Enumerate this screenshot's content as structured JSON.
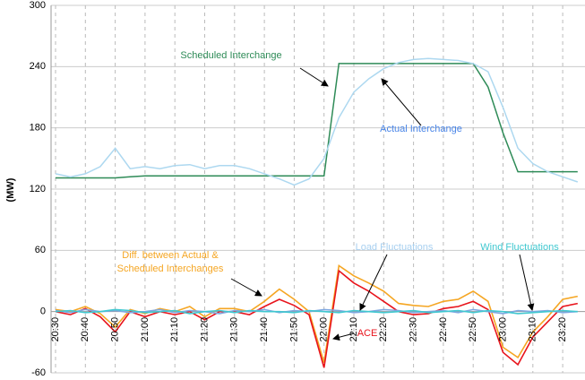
{
  "chart_data": {
    "type": "line",
    "ylabel": "(MW)",
    "categories": [
      "20:30",
      null,
      "20:40",
      null,
      "20:50",
      null,
      "21:00",
      null,
      "21:10",
      null,
      "21:20",
      null,
      "21:30",
      null,
      "21:40",
      null,
      "21:50",
      null,
      "22:00",
      null,
      "22:10",
      null,
      "22:20",
      null,
      "22:30",
      null,
      "22:40",
      null,
      "22:50",
      null,
      "23:00",
      null,
      "23:10",
      null,
      "23:20",
      null
    ],
    "ylim": [
      -60,
      300
    ],
    "yticks": [
      -60,
      0,
      60,
      120,
      180,
      240,
      300
    ],
    "grid": true,
    "series": [
      {
        "color": "#2e8b57",
        "values": [
          131,
          131,
          131,
          131,
          131,
          132,
          133,
          133,
          133,
          133,
          133,
          133,
          133,
          133,
          133,
          133,
          133,
          133,
          133,
          243,
          243,
          243,
          243,
          243,
          243,
          243,
          243,
          243,
          243,
          220,
          175,
          137,
          137,
          137,
          137,
          137
        ]
      },
      {
        "color": "#add8f0",
        "values": [
          135,
          132,
          135,
          142,
          160,
          140,
          142,
          140,
          143,
          144,
          140,
          143,
          143,
          140,
          135,
          130,
          124,
          130,
          150,
          190,
          215,
          228,
          238,
          244,
          247,
          248,
          247,
          246,
          243,
          235,
          200,
          160,
          145,
          137,
          132,
          127
        ]
      },
      {
        "color": "#f5a623",
        "values": [
          2,
          0,
          5,
          -2,
          -15,
          2,
          -2,
          3,
          0,
          5,
          -5,
          3,
          3,
          0,
          10,
          22,
          12,
          0,
          -50,
          45,
          35,
          28,
          20,
          8,
          6,
          5,
          10,
          12,
          20,
          10,
          -35,
          -45,
          -20,
          -5,
          12,
          15
        ]
      },
      {
        "color": "#e8141c",
        "values": [
          0,
          -3,
          3,
          -5,
          -20,
          0,
          -5,
          0,
          -3,
          0,
          -8,
          0,
          0,
          -3,
          5,
          12,
          6,
          -3,
          -55,
          40,
          28,
          20,
          10,
          0,
          -3,
          -2,
          3,
          5,
          10,
          2,
          -40,
          -52,
          -25,
          -10,
          5,
          8
        ]
      },
      {
        "color": "#7fa7e0",
        "values": [
          1,
          -1,
          2,
          0,
          1,
          -1,
          0,
          2,
          -1,
          1,
          0,
          -2,
          1,
          0,
          2,
          -1,
          1,
          0,
          2,
          1,
          -1,
          0,
          2,
          1,
          -1,
          0,
          1,
          -1,
          2,
          0,
          -2,
          1,
          0,
          1,
          -1,
          0
        ]
      },
      {
        "color": "#40c8d0",
        "values": [
          0,
          1,
          -1,
          0,
          2,
          1,
          -1,
          0,
          1,
          -2,
          0,
          1,
          -1,
          1,
          0,
          0,
          -1,
          1,
          0,
          -1,
          1,
          0,
          -1,
          0,
          1,
          -1,
          0,
          1,
          -1,
          1,
          0,
          -2,
          -1,
          0,
          1,
          0
        ]
      }
    ],
    "annotations": [
      {
        "text": "Scheduled Interchange",
        "color": "#2e8b57"
      },
      {
        "text": "Actual Interchange",
        "color": "#4a86e8"
      },
      {
        "text": "Diff. between Actual &",
        "color": "#f5a623"
      },
      {
        "text": "Scheduled Interchanges",
        "color": "#f5a623"
      },
      {
        "text": "Load Fluctuations",
        "color": "#a8d0f0"
      },
      {
        "text": "Wind Fluctuations",
        "color": "#40c8d0"
      },
      {
        "text": "ACE",
        "color": "#e8141c"
      }
    ]
  }
}
